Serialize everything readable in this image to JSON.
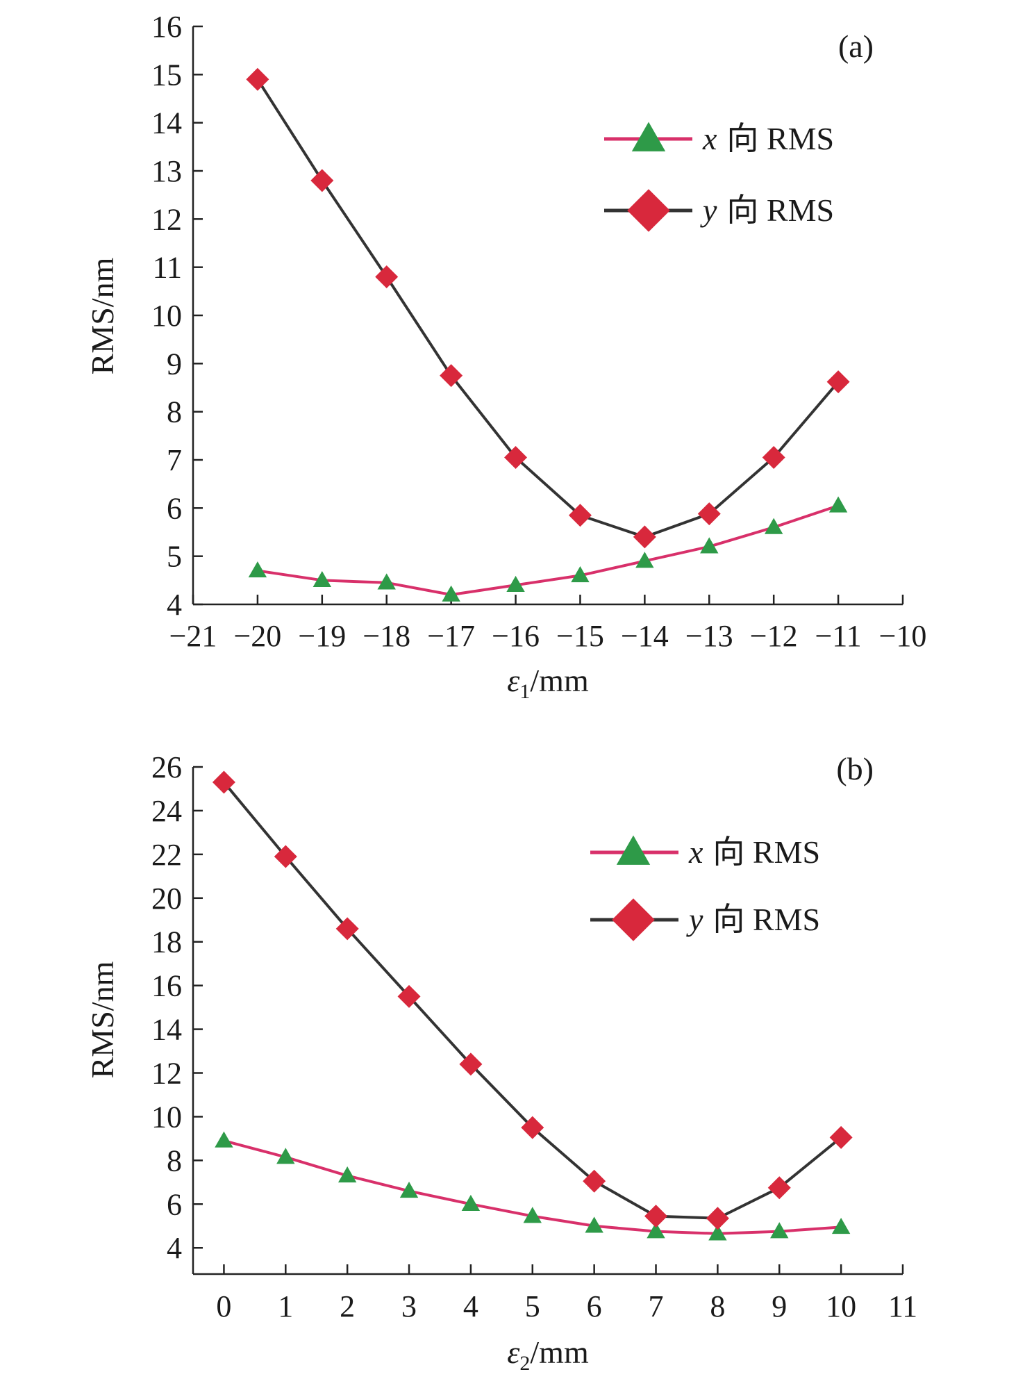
{
  "chart_data": [
    {
      "type": "line",
      "panel_label": "(a)",
      "xlabel_var": "ε",
      "xlabel_sub": "1",
      "xlabel_unit": "/mm",
      "ylabel": "RMS/nm",
      "xlim": [
        -21,
        -10
      ],
      "ylim": [
        4,
        16
      ],
      "x_ticks": [
        -21,
        -20,
        -19,
        -18,
        -17,
        -16,
        -15,
        -14,
        -13,
        -12,
        -11,
        -10
      ],
      "x_tick_labels": [
        "−21",
        "−20",
        "−19",
        "−18",
        "−17",
        "−16",
        "−15",
        "−14",
        "−13",
        "−12",
        "−11",
        "−10"
      ],
      "y_ticks": [
        4,
        5,
        6,
        7,
        8,
        9,
        10,
        11,
        12,
        13,
        14,
        15,
        16
      ],
      "y_tick_labels": [
        "4",
        "5",
        "6",
        "7",
        "8",
        "9",
        "10",
        "11",
        "12",
        "13",
        "14",
        "15",
        "16"
      ],
      "x": [
        -20,
        -19,
        -18,
        -17,
        -16,
        -15,
        -14,
        -13,
        -12,
        -11
      ],
      "series": [
        {
          "name_var": "x",
          "name_rest": "向 RMS",
          "marker": "triangle",
          "line_color": "#d8306a",
          "marker_color": "#2e9a48",
          "values": [
            4.7,
            4.5,
            4.45,
            4.2,
            4.4,
            4.6,
            4.9,
            5.2,
            5.6,
            6.05
          ]
        },
        {
          "name_var": "y",
          "name_rest": "向 RMS",
          "marker": "diamond",
          "line_color": "#333333",
          "marker_color": "#d8283c",
          "values": [
            14.9,
            12.8,
            10.8,
            8.75,
            7.05,
            5.85,
            5.4,
            5.88,
            7.05,
            8.62
          ]
        }
      ],
      "legend_position": "top-right",
      "grid": false
    },
    {
      "type": "line",
      "panel_label": "(b)",
      "xlabel_var": "ε",
      "xlabel_sub": "2",
      "xlabel_unit": "/mm",
      "ylabel": "RMS/nm",
      "xlim": [
        -0.5,
        11
      ],
      "ylim": [
        2.8,
        26
      ],
      "x_ticks": [
        0,
        1,
        2,
        3,
        4,
        5,
        6,
        7,
        8,
        9,
        10,
        11
      ],
      "x_tick_labels": [
        "0",
        "1",
        "2",
        "3",
        "4",
        "5",
        "6",
        "7",
        "8",
        "9",
        "10",
        "11"
      ],
      "y_ticks": [
        4,
        6,
        8,
        10,
        12,
        14,
        16,
        18,
        20,
        22,
        24,
        26
      ],
      "y_tick_labels": [
        "4",
        "6",
        "8",
        "10",
        "12",
        "14",
        "16",
        "18",
        "20",
        "22",
        "24",
        "26"
      ],
      "x": [
        0,
        1,
        2,
        3,
        4,
        5,
        6,
        7,
        8,
        9,
        10
      ],
      "series": [
        {
          "name_var": "x",
          "name_rest": "向 RMS",
          "marker": "triangle",
          "line_color": "#d8306a",
          "marker_color": "#2e9a48",
          "values": [
            8.9,
            8.15,
            7.3,
            6.6,
            6.0,
            5.45,
            5.0,
            4.75,
            4.65,
            4.75,
            4.95
          ]
        },
        {
          "name_var": "y",
          "name_rest": "向 RMS",
          "marker": "diamond",
          "line_color": "#333333",
          "marker_color": "#d8283c",
          "values": [
            25.3,
            21.9,
            18.6,
            15.5,
            12.4,
            9.5,
            7.05,
            5.45,
            5.35,
            6.75,
            9.05
          ]
        }
      ],
      "legend_position": "top-right",
      "grid": false
    }
  ]
}
